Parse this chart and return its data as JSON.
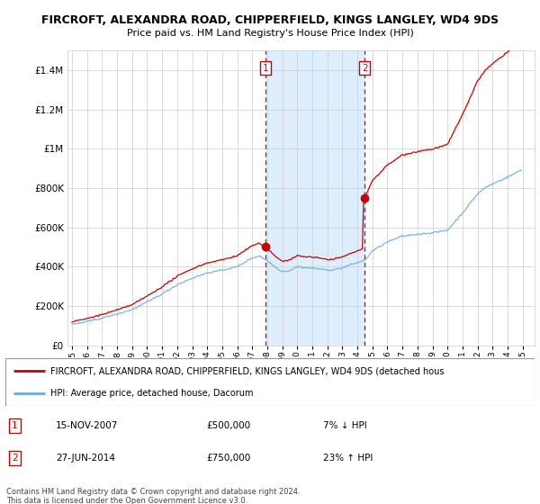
{
  "title": "FIRCROFT, ALEXANDRA ROAD, CHIPPERFIELD, KINGS LANGLEY, WD4 9DS",
  "subtitle": "Price paid vs. HM Land Registry's House Price Index (HPI)",
  "legend_line1": "FIRCROFT, ALEXANDRA ROAD, CHIPPERFIELD, KINGS LANGLEY, WD4 9DS (detached hous",
  "legend_line2": "HPI: Average price, detached house, Dacorum",
  "table_rows": [
    {
      "num": "1",
      "date": "15-NOV-2007",
      "price": "£500,000",
      "change": "7% ↓ HPI"
    },
    {
      "num": "2",
      "date": "27-JUN-2014",
      "price": "£750,000",
      "change": "23% ↑ HPI"
    }
  ],
  "footer": "Contains HM Land Registry data © Crown copyright and database right 2024.\nThis data is licensed under the Open Government Licence v3.0.",
  "sale1_year": 2007.88,
  "sale1_price": 500000,
  "sale2_year": 2014.48,
  "sale2_price": 750000,
  "hpi_color": "#6baed6",
  "price_color": "#cc0000",
  "shaded_color": "#ddeeff",
  "vline_color": "#cc0000",
  "ylim_max": 1500000,
  "xlim_start": 1994.7,
  "xlim_end": 2025.8
}
